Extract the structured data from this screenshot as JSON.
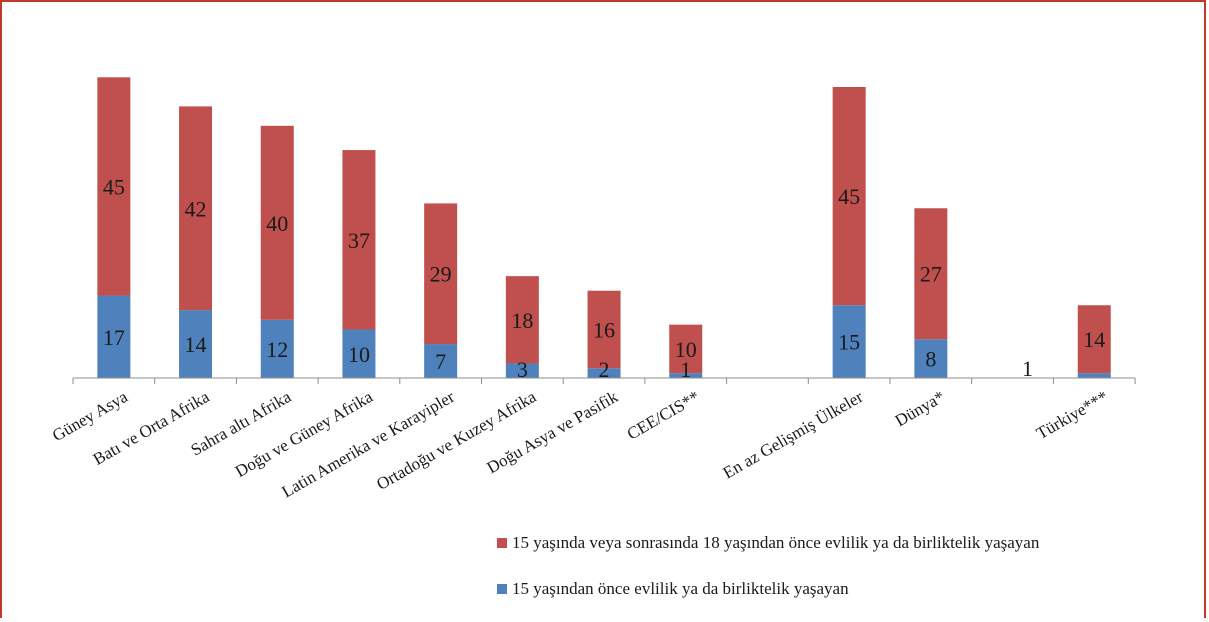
{
  "chart_data": {
    "type": "bar",
    "stacked": true,
    "categories": [
      "Güney Asya",
      "Batı ve Orta Afrika",
      "Sahra altı Afrika",
      "Doğu ve Güney Afrika",
      "Latin Amerika ve Karayipler",
      "Ortadoğu ve Kuzey Afrika",
      "Doğu Asya ve Pasifik",
      "CEE/CIS**",
      "",
      "En az Gelişmiş Ülkeler",
      "Dünya*",
      "",
      "Türkiye***"
    ],
    "series": [
      {
        "name": "15 yaşından önce evlilik ya da birliktelik yaşayan",
        "color": "#4f81bd",
        "values": [
          17,
          14,
          12,
          10,
          7,
          3,
          2,
          1,
          null,
          15,
          8,
          null,
          1
        ]
      },
      {
        "name": "15 yaşında veya sonrasında 18 yaşından önce evlilik ya da birliktelik yaşayan",
        "color": "#c0504d",
        "values": [
          45,
          42,
          40,
          37,
          29,
          18,
          16,
          10,
          null,
          45,
          27,
          null,
          14
        ]
      }
    ],
    "grid": false,
    "legend_position": "bottom-right"
  }
}
